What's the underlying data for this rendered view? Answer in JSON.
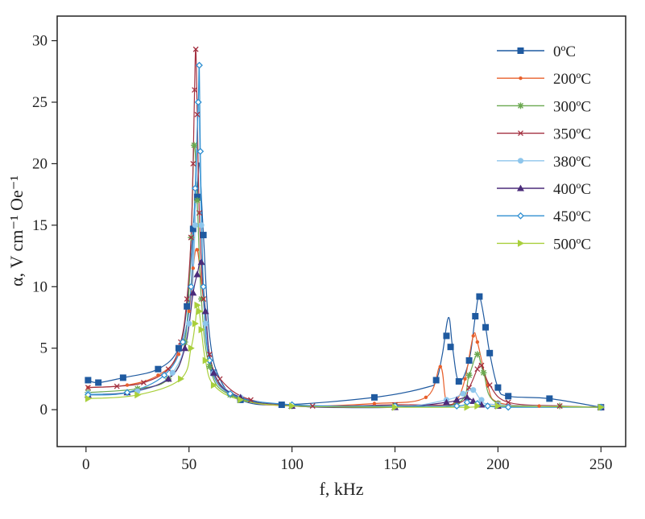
{
  "chart_data": {
    "type": "line",
    "title": "",
    "xlabel": "f, kHz",
    "ylabel": "α, V cm⁻¹ Oe⁻¹",
    "xlim": [
      -14,
      262
    ],
    "ylim": [
      -3,
      32
    ],
    "xticks": [
      0,
      50,
      100,
      150,
      200,
      250
    ],
    "yticks": [
      0,
      5,
      10,
      15,
      20,
      25,
      30
    ],
    "grid": false,
    "legend_position": "top-right",
    "series": [
      {
        "name": "0ºC",
        "color": "#1f5aa0",
        "marker": "square",
        "x": [
          1,
          6,
          18,
          35,
          45,
          49,
          52,
          54,
          57,
          62,
          75,
          95,
          140,
          170,
          175,
          177,
          181,
          186,
          189,
          191,
          194,
          196,
          200,
          205,
          225,
          250
        ],
        "y": [
          2.4,
          2.2,
          2.6,
          3.3,
          5.0,
          8.4,
          14.7,
          17.3,
          14.2,
          3.0,
          0.8,
          0.4,
          1.0,
          2.4,
          6.0,
          5.1,
          2.3,
          4.0,
          7.6,
          9.2,
          6.7,
          4.6,
          1.8,
          1.1,
          0.9,
          0.2
        ],
        "line_x": [
          1,
          6,
          18,
          35,
          45,
          49,
          52,
          53.5,
          54,
          55,
          57,
          60,
          65,
          75,
          95,
          140,
          165,
          170,
          173,
          176,
          178,
          181,
          186,
          189,
          191,
          194,
          196,
          200,
          205,
          225,
          250
        ],
        "line_y": [
          2.4,
          2.2,
          2.6,
          3.3,
          5.0,
          8.4,
          14.7,
          18.5,
          17.3,
          20,
          14.2,
          6,
          2.5,
          0.8,
          0.4,
          1.0,
          1.8,
          2.4,
          4.5,
          7.5,
          5.0,
          2.3,
          4.0,
          7.6,
          9.2,
          6.7,
          4.6,
          1.8,
          1.1,
          0.9,
          0.2
        ]
      },
      {
        "name": "200ºC",
        "color": "#e8602c",
        "marker": "dot",
        "x": [
          1,
          20,
          35,
          45,
          50,
          52,
          54,
          57,
          62,
          75,
          100,
          140,
          165,
          172,
          175,
          180,
          184,
          188,
          190,
          195,
          200,
          220,
          250
        ],
        "y": [
          1.8,
          2.0,
          2.8,
          4.5,
          8.0,
          11.5,
          13.0,
          9.0,
          3.0,
          0.9,
          0.3,
          0.5,
          1.0,
          3.5,
          0.6,
          0.8,
          2.5,
          6.0,
          5.5,
          2.0,
          0.6,
          0.3,
          0.2
        ],
        "line_x": [
          1,
          20,
          35,
          45,
          50,
          52,
          54,
          57,
          62,
          75,
          100,
          140,
          165,
          172,
          175,
          180,
          184,
          188,
          190,
          195,
          200,
          220,
          250
        ],
        "line_y": [
          1.8,
          2.0,
          2.8,
          4.5,
          8.0,
          11.5,
          13.0,
          9.0,
          3.0,
          0.9,
          0.3,
          0.5,
          1.0,
          3.5,
          0.6,
          0.8,
          2.5,
          6.0,
          5.5,
          2.0,
          0.6,
          0.3,
          0.2
        ]
      },
      {
        "name": "300ºC",
        "color": "#6aa84f",
        "marker": "asterisk",
        "x": [
          1,
          25,
          40,
          48,
          51,
          52.5,
          54,
          56,
          60,
          70,
          100,
          150,
          180,
          186,
          190,
          193,
          200,
          230,
          250
        ],
        "y": [
          1.4,
          1.7,
          2.5,
          5.5,
          14.0,
          21.5,
          17.0,
          9.0,
          3.5,
          1.2,
          0.3,
          0.3,
          0.5,
          2.8,
          4.5,
          3.0,
          0.5,
          0.3,
          0.2
        ],
        "line_x": [
          1,
          25,
          40,
          48,
          51,
          52.5,
          54,
          56,
          60,
          70,
          100,
          150,
          180,
          186,
          190,
          193,
          200,
          230,
          250
        ],
        "line_y": [
          1.4,
          1.7,
          2.5,
          5.5,
          14.0,
          21.5,
          17.0,
          9.0,
          3.5,
          1.2,
          0.3,
          0.3,
          0.5,
          2.8,
          4.5,
          3.0,
          0.5,
          0.3,
          0.2
        ]
      },
      {
        "name": "350ºC",
        "color": "#a33040",
        "marker": "cross",
        "x": [
          1,
          15,
          28,
          40,
          46,
          49,
          51,
          52,
          52.7,
          53.3,
          54,
          55,
          57,
          60,
          65,
          80,
          110,
          150,
          180,
          186,
          190,
          192,
          196,
          205,
          230,
          250
        ],
        "y": [
          1.8,
          1.9,
          2.2,
          3.3,
          5.5,
          9.0,
          14.0,
          20.0,
          26.0,
          29.3,
          24.0,
          16.0,
          9.0,
          4.5,
          2.5,
          0.8,
          0.3,
          0.4,
          0.5,
          1.8,
          3.3,
          3.6,
          2.0,
          0.6,
          0.3,
          0.2
        ],
        "line_x": [
          1,
          15,
          28,
          40,
          46,
          49,
          51,
          52,
          52.7,
          53.3,
          54,
          55,
          57,
          60,
          65,
          80,
          110,
          150,
          180,
          186,
          190,
          192,
          196,
          205,
          230,
          250
        ],
        "line_y": [
          1.8,
          1.9,
          2.2,
          3.3,
          5.5,
          9.0,
          14.0,
          20.0,
          26.0,
          29.3,
          24.0,
          16.0,
          9.0,
          4.5,
          2.5,
          0.8,
          0.3,
          0.4,
          0.5,
          1.8,
          3.3,
          3.6,
          2.0,
          0.6,
          0.3,
          0.2
        ]
      },
      {
        "name": "380ºC",
        "color": "#8ec6ec",
        "marker": "circle",
        "x": [
          1,
          25,
          42,
          50,
          53,
          54.5,
          56,
          58,
          62,
          75,
          100,
          150,
          175,
          183,
          188,
          192,
          200,
          250
        ],
        "y": [
          1.3,
          1.5,
          3.0,
          7.0,
          15.0,
          25.0,
          15.0,
          7.0,
          3.0,
          1.0,
          0.3,
          0.2,
          0.8,
          1.3,
          1.6,
          0.8,
          0.4,
          0.2
        ],
        "line_x": [
          1,
          25,
          42,
          50,
          53,
          54.5,
          56,
          58,
          62,
          75,
          100,
          150,
          175,
          183,
          188,
          192,
          200,
          250
        ],
        "line_y": [
          1.3,
          1.5,
          3.0,
          7.0,
          15.0,
          25.0,
          15.0,
          7.0,
          3.0,
          1.0,
          0.3,
          0.2,
          0.8,
          1.3,
          1.6,
          0.8,
          0.4,
          0.2
        ]
      },
      {
        "name": "400ºC",
        "color": "#4b2c7a",
        "marker": "triangle",
        "x": [
          1,
          20,
          40,
          48,
          52,
          54,
          56,
          58,
          62,
          75,
          100,
          150,
          175,
          180,
          185,
          188,
          192,
          200,
          250
        ],
        "y": [
          1.2,
          1.4,
          2.5,
          5.0,
          9.5,
          11.0,
          12.0,
          8.0,
          3.0,
          1.0,
          0.3,
          0.2,
          0.6,
          0.8,
          1.0,
          0.7,
          0.4,
          0.3,
          0.2
        ],
        "line_x": [
          1,
          20,
          40,
          48,
          52,
          54,
          56,
          58,
          62,
          75,
          100,
          150,
          175,
          180,
          185,
          188,
          192,
          200,
          250
        ],
        "line_y": [
          1.2,
          1.4,
          2.5,
          5.0,
          9.5,
          11.0,
          12.0,
          8.0,
          3.0,
          1.0,
          0.3,
          0.2,
          0.6,
          0.8,
          1.0,
          0.7,
          0.4,
          0.3,
          0.2
        ]
      },
      {
        "name": "450ºC",
        "color": "#2f8fd1",
        "marker": "diamond",
        "x": [
          1,
          20,
          38,
          47,
          51,
          53,
          54.5,
          55,
          55.5,
          57,
          60,
          70,
          100,
          150,
          180,
          185,
          190,
          195,
          205,
          250
        ],
        "y": [
          1.2,
          1.4,
          2.8,
          5.5,
          10.0,
          18.0,
          25.0,
          28.0,
          21.0,
          10.0,
          4.0,
          1.3,
          0.4,
          0.3,
          0.3,
          0.6,
          0.5,
          0.3,
          0.2,
          0.2
        ],
        "line_x": [
          1,
          20,
          38,
          47,
          51,
          53,
          54.5,
          55,
          55.5,
          57,
          60,
          70,
          100,
          150,
          180,
          185,
          190,
          195,
          205,
          250
        ],
        "line_y": [
          1.2,
          1.4,
          2.8,
          5.5,
          10.0,
          18.0,
          25.0,
          28.0,
          21.0,
          10.0,
          4.0,
          1.3,
          0.4,
          0.3,
          0.3,
          0.6,
          0.5,
          0.3,
          0.2,
          0.2
        ]
      },
      {
        "name": "500ºC",
        "color": "#a9cf3c",
        "marker": "triangle-right",
        "x": [
          1,
          25,
          46,
          51,
          53,
          54,
          55,
          56,
          58,
          62,
          75,
          100,
          150,
          185,
          190,
          200,
          250
        ],
        "y": [
          0.9,
          1.2,
          2.5,
          5.0,
          7.0,
          8.5,
          8.0,
          6.5,
          4.0,
          2.0,
          0.8,
          0.3,
          0.2,
          0.2,
          0.3,
          0.3,
          0.2
        ],
        "line_x": [
          1,
          25,
          46,
          51,
          53,
          54,
          55,
          56,
          58,
          62,
          75,
          100,
          150,
          185,
          190,
          200,
          250
        ],
        "line_y": [
          0.9,
          1.2,
          2.5,
          5.0,
          7.0,
          8.5,
          8.0,
          6.5,
          4.0,
          2.0,
          0.8,
          0.3,
          0.2,
          0.2,
          0.3,
          0.3,
          0.2
        ]
      }
    ]
  }
}
